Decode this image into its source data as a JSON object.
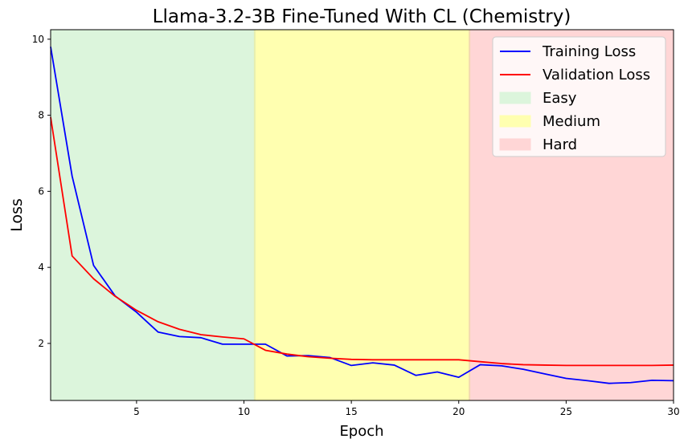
{
  "chart_data": {
    "type": "line",
    "title": "Llama-3.2-3B Fine-Tuned With CL (Chemistry)",
    "xlabel": "Epoch",
    "ylabel": "Loss",
    "xlim": [
      1,
      30
    ],
    "ylim": [
      0.5,
      10.25
    ],
    "xticks": [
      5,
      10,
      15,
      20,
      25,
      30
    ],
    "yticks": [
      2,
      4,
      6,
      8,
      10
    ],
    "grid": false,
    "legend_position": "top-right",
    "regions": [
      {
        "name": "Easy",
        "x_start": 1,
        "x_end": 10.5,
        "color": "#dcf5dc"
      },
      {
        "name": "Medium",
        "x_start": 10.5,
        "x_end": 20.5,
        "color": "#ffffb0"
      },
      {
        "name": "Hard",
        "x_start": 20.5,
        "x_end": 30,
        "color": "#ffd6d6"
      }
    ],
    "x": [
      1,
      2,
      3,
      4,
      5,
      6,
      7,
      8,
      9,
      10,
      11,
      12,
      13,
      14,
      15,
      16,
      17,
      18,
      19,
      20,
      21,
      22,
      23,
      24,
      25,
      26,
      27,
      28,
      29,
      30
    ],
    "series": [
      {
        "name": "Training Loss",
        "color": "#0000ff",
        "values": [
          9.8,
          6.4,
          4.05,
          3.25,
          2.82,
          2.3,
          2.18,
          2.15,
          1.98,
          1.98,
          1.98,
          1.67,
          1.68,
          1.63,
          1.42,
          1.49,
          1.43,
          1.16,
          1.25,
          1.11,
          1.44,
          1.41,
          1.32,
          1.2,
          1.08,
          1.02,
          0.95,
          0.97,
          1.03,
          1.02
        ]
      },
      {
        "name": "Validation Loss",
        "color": "#ff0000",
        "values": [
          7.95,
          4.3,
          3.7,
          3.24,
          2.87,
          2.57,
          2.37,
          2.23,
          2.17,
          2.12,
          1.82,
          1.72,
          1.65,
          1.61,
          1.58,
          1.57,
          1.57,
          1.57,
          1.57,
          1.57,
          1.52,
          1.47,
          1.44,
          1.43,
          1.42,
          1.42,
          1.42,
          1.42,
          1.42,
          1.43
        ]
      }
    ]
  }
}
